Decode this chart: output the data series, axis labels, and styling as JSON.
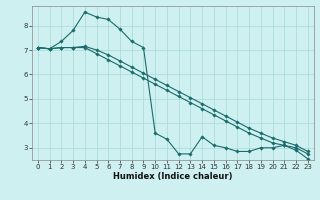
{
  "xlabel": "Humidex (Indice chaleur)",
  "bg_color": "#cff0f0",
  "grid_color": "#a8d8d8",
  "line_color": "#1a6b6b",
  "xlim": [
    -0.5,
    23.5
  ],
  "ylim": [
    2.5,
    8.8
  ],
  "xticks": [
    0,
    1,
    2,
    3,
    4,
    5,
    6,
    7,
    8,
    9,
    10,
    11,
    12,
    13,
    14,
    15,
    16,
    17,
    18,
    19,
    20,
    21,
    22,
    23
  ],
  "yticks": [
    3,
    4,
    5,
    6,
    7,
    8
  ],
  "series1_x": [
    0,
    1,
    2,
    3,
    4,
    5,
    6,
    7,
    8,
    9,
    10,
    11,
    12,
    13,
    14,
    15,
    16,
    17,
    18,
    19,
    20,
    21,
    22,
    23
  ],
  "series1_y": [
    7.1,
    7.05,
    7.35,
    7.8,
    8.55,
    8.35,
    8.25,
    7.85,
    7.35,
    7.1,
    3.6,
    3.35,
    2.75,
    2.75,
    3.45,
    3.1,
    3.0,
    2.85,
    2.85,
    3.0,
    3.0,
    3.1,
    2.9,
    2.55
  ],
  "series2_x": [
    0,
    1,
    2,
    3,
    4,
    5,
    6,
    7,
    8,
    9,
    10,
    11,
    12,
    13,
    14,
    15,
    16,
    17,
    18,
    19,
    20,
    21,
    22,
    23
  ],
  "series2_y": [
    7.1,
    7.05,
    7.1,
    7.1,
    7.15,
    7.0,
    6.8,
    6.55,
    6.3,
    6.05,
    5.8,
    5.55,
    5.3,
    5.05,
    4.8,
    4.55,
    4.3,
    4.05,
    3.8,
    3.6,
    3.4,
    3.25,
    3.1,
    2.85
  ],
  "series3_x": [
    0,
    1,
    2,
    3,
    4,
    5,
    6,
    7,
    8,
    9,
    10,
    11,
    12,
    13,
    14,
    15,
    16,
    17,
    18,
    19,
    20,
    21,
    22,
    23
  ],
  "series3_y": [
    7.1,
    7.05,
    7.1,
    7.1,
    7.1,
    6.85,
    6.6,
    6.35,
    6.1,
    5.85,
    5.6,
    5.35,
    5.1,
    4.85,
    4.6,
    4.35,
    4.1,
    3.85,
    3.6,
    3.4,
    3.2,
    3.1,
    3.0,
    2.75
  ]
}
